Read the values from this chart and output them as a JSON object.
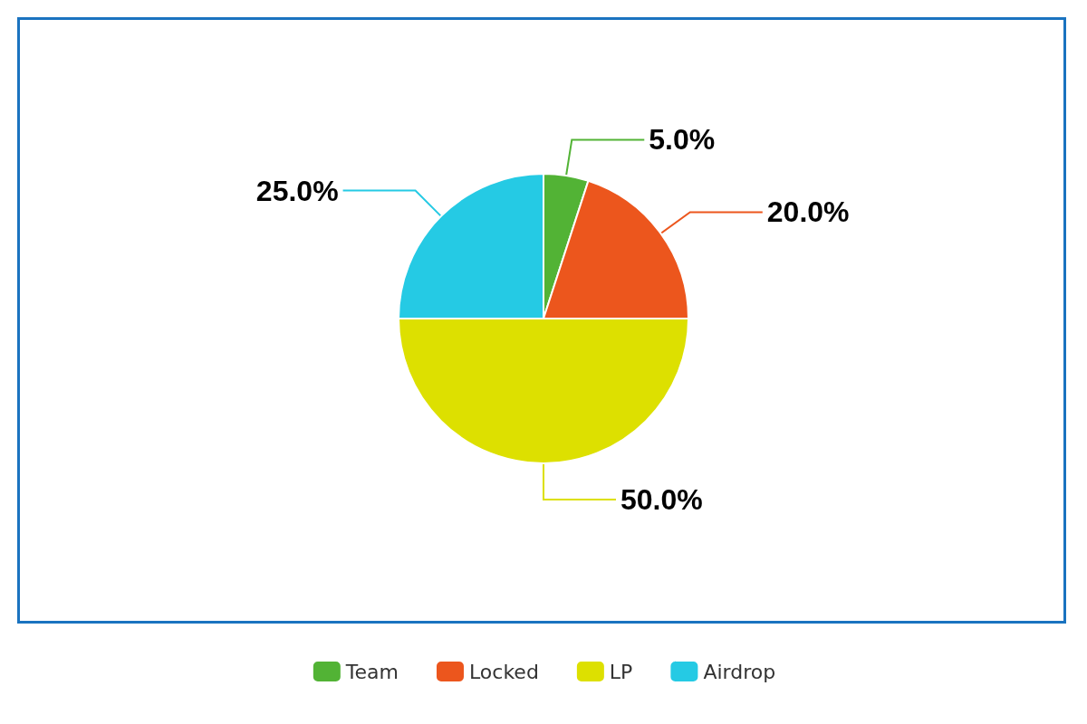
{
  "chart_data": {
    "type": "pie",
    "categories": [
      "Team",
      "Locked",
      "LP",
      "Airdrop"
    ],
    "values": [
      5,
      20,
      50,
      25
    ],
    "colors": [
      "#52b335",
      "#ec561d",
      "#dde000",
      "#25cae4"
    ],
    "value_labels": [
      "5.0%",
      "20.0%",
      "50.0%",
      "25.0%"
    ],
    "legend": "bottom"
  }
}
